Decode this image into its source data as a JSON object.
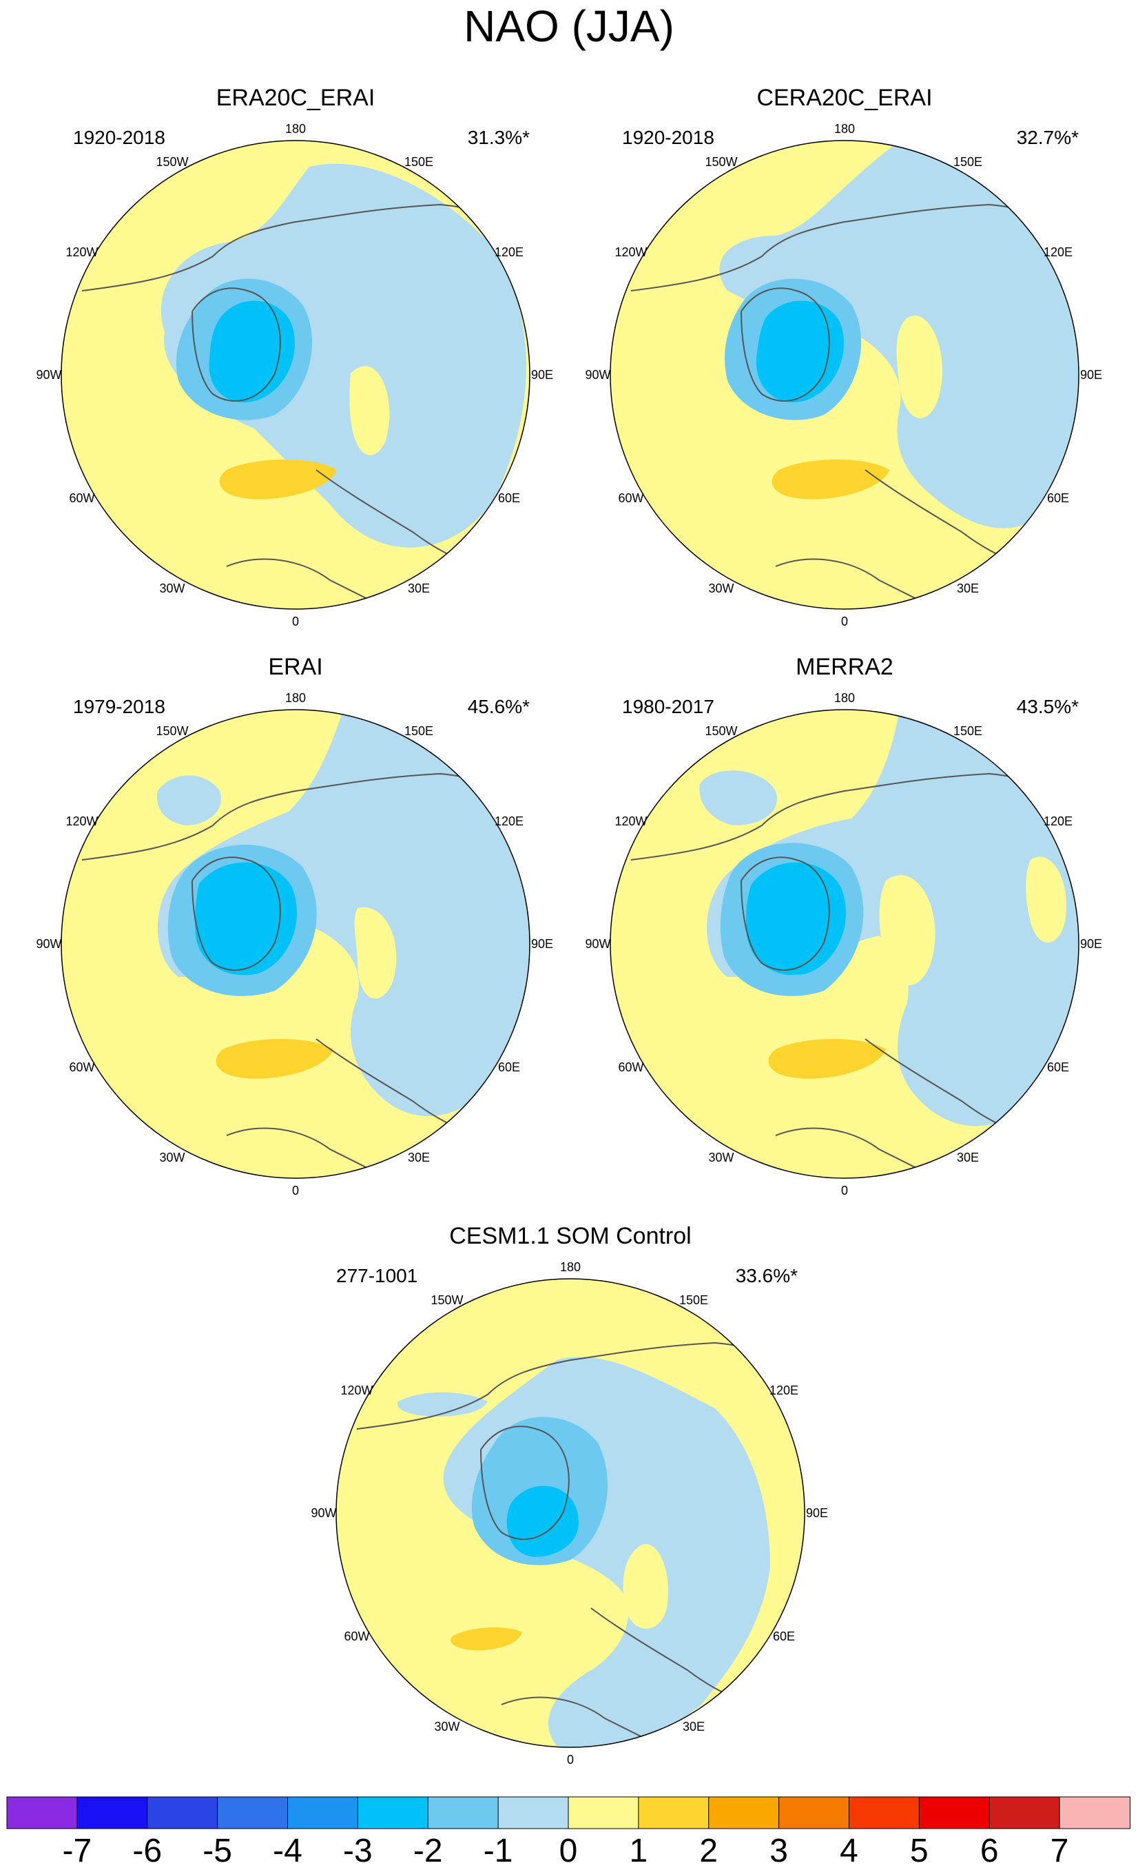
{
  "figure": {
    "title": "NAO (JJA)"
  },
  "longitude_labels": [
    "180",
    "150E",
    "120E",
    "90E",
    "60E",
    "30E",
    "0",
    "30W",
    "60W",
    "90W",
    "120W",
    "150W"
  ],
  "panels": [
    {
      "title": "ERA20C_ERAI",
      "years": "1920-2018",
      "explained_variance": "31.3%*"
    },
    {
      "title": "CERA20C_ERAI",
      "years": "1920-2018",
      "explained_variance": "32.7%*"
    },
    {
      "title": "ERAI",
      "years": "1979-2018",
      "explained_variance": "45.6%*"
    },
    {
      "title": "MERRA2",
      "years": "1980-2017",
      "explained_variance": "43.5%*"
    },
    {
      "title": "CESM1.1 SOM Control",
      "years": "277-1001",
      "explained_variance": "33.6%*"
    }
  ],
  "colorbar": {
    "labels": [
      "-7",
      "-6",
      "-5",
      "-4",
      "-3",
      "-2",
      "-1",
      "0",
      "1",
      "2",
      "3",
      "4",
      "5",
      "6",
      "7"
    ],
    "colors": [
      "#8a2be2",
      "#1a10f5",
      "#2a44e6",
      "#2f72ec",
      "#1c93f2",
      "#00c2f8",
      "#6ec9f0",
      "#b3dcf0",
      "#fef991",
      "#fdd42d",
      "#faa800",
      "#f57a00",
      "#f73a00",
      "#ec0000",
      "#d11c1c",
      "#fbb4b4"
    ]
  }
}
